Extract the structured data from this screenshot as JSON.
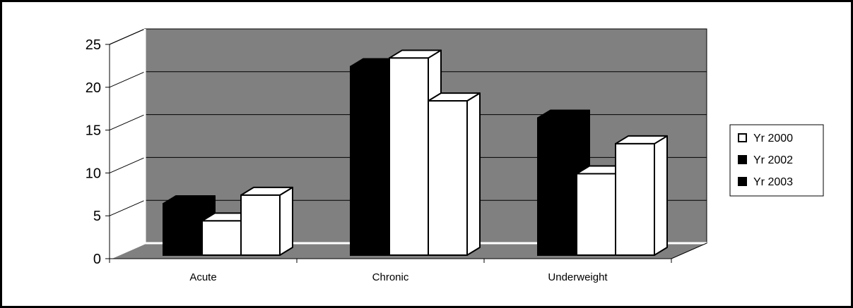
{
  "chart_data": {
    "type": "bar",
    "categories": [
      "Acute",
      "Chronic",
      "Underweight"
    ],
    "series": [
      {
        "name": "Yr 2000",
        "values": [
          6,
          22,
          16
        ],
        "color": "#000000"
      },
      {
        "name": "Yr 2002",
        "values": [
          4,
          23,
          9.5
        ],
        "color": "#ffffff"
      },
      {
        "name": "Yr 2003",
        "values": [
          7,
          18,
          13
        ],
        "color": "#ffffff"
      }
    ],
    "legend_swatches": [
      "#ffffff",
      "#000000",
      "#000000"
    ],
    "yticks": [
      0,
      5,
      10,
      15,
      20,
      25
    ],
    "ylim": [
      0,
      25
    ],
    "grid": true,
    "legend_position": "right",
    "wall_color": "#808080",
    "title": "",
    "xlabel": "",
    "ylabel": ""
  }
}
